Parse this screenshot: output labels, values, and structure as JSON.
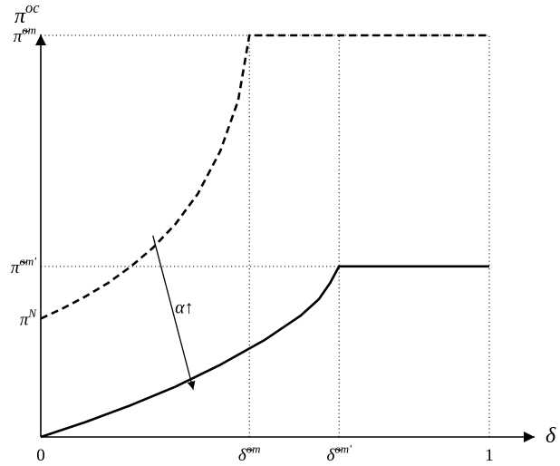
{
  "chart_data": {
    "type": "line",
    "x_axis_label": "δ",
    "y_axis_label": "π",
    "y_axis_label_superscript": "oc",
    "xlim": [
      0,
      1
    ],
    "ylim": [
      0,
      1
    ],
    "x_ticks": [
      {
        "x": 0,
        "base": "0",
        "sup": ""
      },
      {
        "x": 0.465,
        "base": "δ̃",
        "sup": "om"
      },
      {
        "x": 0.665,
        "base": "δ̃",
        "sup": "om'"
      },
      {
        "x": 1,
        "base": "1",
        "sup": ""
      }
    ],
    "y_ticks": [
      {
        "y": 0.292,
        "base": "π",
        "sup": "N"
      },
      {
        "y": 0.421,
        "base": "π̃",
        "sup": "om'"
      },
      {
        "y": 0.991,
        "base": "π̃",
        "sup": "om"
      }
    ],
    "series": [
      {
        "style": "dashed",
        "points": [
          [
            0,
            0.292
          ],
          [
            0.05,
            0.318
          ],
          [
            0.1,
            0.347
          ],
          [
            0.15,
            0.38
          ],
          [
            0.2,
            0.42
          ],
          [
            0.25,
            0.467
          ],
          [
            0.3,
            0.525
          ],
          [
            0.35,
            0.6
          ],
          [
            0.4,
            0.705
          ],
          [
            0.44,
            0.83
          ],
          [
            0.465,
            0.991
          ],
          [
            1,
            0.991
          ]
        ]
      },
      {
        "style": "solid",
        "points": [
          [
            0,
            0
          ],
          [
            0.1,
            0.037
          ],
          [
            0.2,
            0.078
          ],
          [
            0.3,
            0.124
          ],
          [
            0.4,
            0.178
          ],
          [
            0.5,
            0.24
          ],
          [
            0.58,
            0.3
          ],
          [
            0.62,
            0.34
          ],
          [
            0.645,
            0.38
          ],
          [
            0.665,
            0.421
          ],
          [
            1,
            0.421
          ]
        ]
      }
    ],
    "annotation": {
      "text": "α↑",
      "arrow_from": [
        0.25,
        0.497
      ],
      "arrow_to": [
        0.34,
        0.117
      ],
      "label_at": [
        0.32,
        0.305
      ]
    },
    "guide_lines": "dotted"
  }
}
